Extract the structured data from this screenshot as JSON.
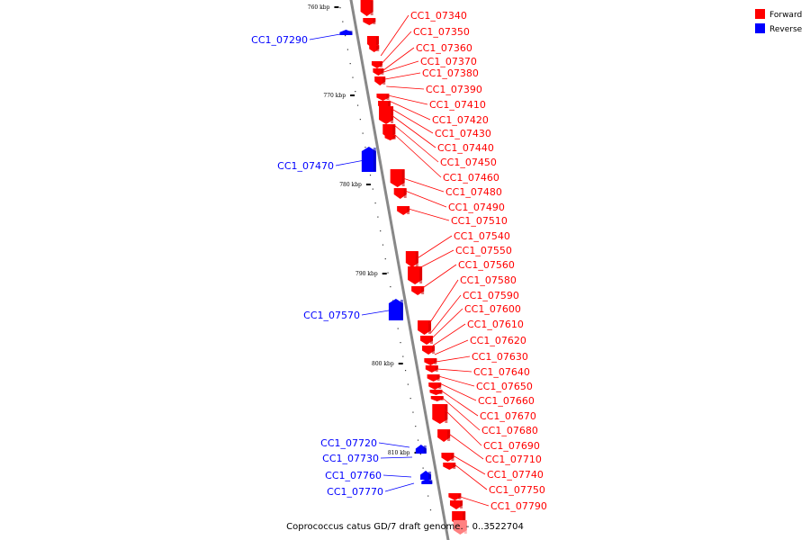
{
  "colors": {
    "forward": "#ff0000",
    "forward_dark": "#c80000",
    "forward_light": "#ff8080",
    "reverse": "#0000ff",
    "reverse_dark": "#0000b0",
    "axis": "#888888"
  },
  "legend": [
    {
      "label": "Forward",
      "color": "#ff0000"
    },
    {
      "label": "Reverse",
      "color": "#0000ff"
    }
  ],
  "caption": "Coprococcus catus GD/7 draft genome. - 0..3522704",
  "ticks": [
    "760 kbp",
    "770 kbp",
    "780 kbp",
    "790 kbp",
    "800 kbp",
    "810 kbp"
  ],
  "forward_labels": [
    "CC1_07340",
    "CC1_07350",
    "CC1_07360",
    "CC1_07370",
    "CC1_07380",
    "CC1_07390",
    "CC1_07410",
    "CC1_07420",
    "CC1_07430",
    "CC1_07440",
    "CC1_07450",
    "CC1_07460",
    "CC1_07480",
    "CC1_07490",
    "CC1_07510",
    "CC1_07540",
    "CC1_07550",
    "CC1_07560",
    "CC1_07580",
    "CC1_07590",
    "CC1_07600",
    "CC1_07610",
    "CC1_07620",
    "CC1_07630",
    "CC1_07640",
    "CC1_07650",
    "CC1_07660",
    "CC1_07670",
    "CC1_07680",
    "CC1_07690",
    "CC1_07710",
    "CC1_07740",
    "CC1_07750",
    "CC1_07790"
  ],
  "reverse_labels": [
    "CC1_07290",
    "CC1_07470",
    "CC1_07570",
    "CC1_07720",
    "CC1_07730",
    "CC1_07760",
    "CC1_07770"
  ]
}
